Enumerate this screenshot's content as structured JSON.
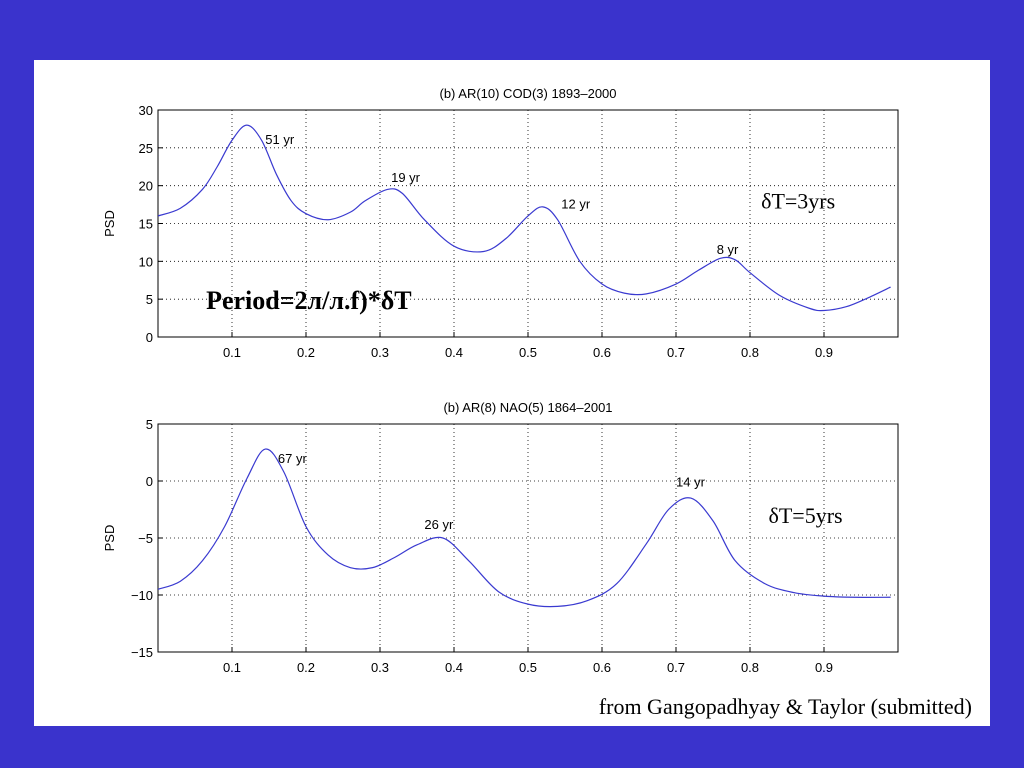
{
  "slide": {
    "credit": "from Gangopadhyay & Taylor (submitted)",
    "background_color": "#3a33cc",
    "line_color": "#3a3ad0"
  },
  "chart_data": [
    {
      "type": "line",
      "title": "(b)          AR(10) COD(3) 1893–2000",
      "xlabel": "",
      "ylabel": "PSD",
      "xlim": [
        0,
        1
      ],
      "ylim": [
        0,
        30
      ],
      "xticks": [
        0.1,
        0.2,
        0.3,
        0.4,
        0.5,
        0.6,
        0.7,
        0.8,
        0.9
      ],
      "xtick_labels": [
        "0.1",
        "0.2",
        "0.3",
        "0.4",
        "0.5",
        "0.6",
        "0.7",
        "0.8",
        "0.9"
      ],
      "yticks": [
        0,
        5,
        10,
        15,
        20,
        25,
        30
      ],
      "ytick_labels": [
        "0",
        "5",
        "10",
        "15",
        "20",
        "25",
        "30"
      ],
      "grid": true,
      "x": [
        0.0,
        0.03,
        0.06,
        0.08,
        0.1,
        0.12,
        0.14,
        0.16,
        0.18,
        0.2,
        0.23,
        0.26,
        0.28,
        0.31,
        0.33,
        0.36,
        0.4,
        0.44,
        0.47,
        0.5,
        0.52,
        0.54,
        0.57,
        0.6,
        0.63,
        0.66,
        0.7,
        0.73,
        0.76,
        0.78,
        0.8,
        0.84,
        0.88,
        0.9,
        0.93,
        0.96,
        0.99
      ],
      "y": [
        16.0,
        17.0,
        19.5,
        22.5,
        26.0,
        28.0,
        26.0,
        21.5,
        18.0,
        16.3,
        15.5,
        16.5,
        18.0,
        19.5,
        19.0,
        15.5,
        12.0,
        11.3,
        13.0,
        16.0,
        17.2,
        15.5,
        10.0,
        7.0,
        5.8,
        5.7,
        7.0,
        8.8,
        10.4,
        10.2,
        8.5,
        5.5,
        3.8,
        3.5,
        4.0,
        5.2,
        6.6
      ],
      "annotations": [
        {
          "text": "51 yr",
          "x": 0.145,
          "y": 25.5
        },
        {
          "text": "19 yr",
          "x": 0.315,
          "y": 20.5
        },
        {
          "text": "12 yr",
          "x": 0.545,
          "y": 17.0
        },
        {
          "text": "8 yr",
          "x": 0.755,
          "y": 11.0
        }
      ],
      "text_labels": [
        {
          "text": "δT=3yrs",
          "x": 0.815,
          "y": 17.0,
          "style": "large"
        },
        {
          "text": "Period=2л/л.f)*δT",
          "x": 0.065,
          "y": 3.7,
          "style": "bold"
        }
      ]
    },
    {
      "type": "line",
      "title": "(b)          AR(8) NAO(5) 1864–2001",
      "xlabel": "",
      "ylabel": "PSD",
      "xlim": [
        0,
        1
      ],
      "ylim": [
        -15,
        5
      ],
      "xticks": [
        0.1,
        0.2,
        0.3,
        0.4,
        0.5,
        0.6,
        0.7,
        0.8,
        0.9
      ],
      "xtick_labels": [
        "0.1",
        "0.2",
        "0.3",
        "0.4",
        "0.5",
        "0.6",
        "0.7",
        "0.8",
        "0.9"
      ],
      "yticks": [
        -15,
        -10,
        -5,
        0,
        5
      ],
      "ytick_labels": [
        "−15",
        "−10",
        "−5",
        "0",
        "5"
      ],
      "grid": true,
      "x": [
        0.0,
        0.03,
        0.06,
        0.09,
        0.12,
        0.145,
        0.17,
        0.2,
        0.23,
        0.26,
        0.29,
        0.32,
        0.35,
        0.385,
        0.42,
        0.46,
        0.5,
        0.54,
        0.58,
        0.62,
        0.66,
        0.69,
        0.72,
        0.75,
        0.78,
        0.82,
        0.86,
        0.9,
        0.94,
        0.99
      ],
      "y": [
        -9.5,
        -8.8,
        -7.0,
        -4.0,
        0.2,
        2.8,
        0.8,
        -4.0,
        -6.5,
        -7.6,
        -7.6,
        -6.7,
        -5.6,
        -5.0,
        -7.0,
        -9.7,
        -10.8,
        -11.0,
        -10.5,
        -9.0,
        -5.5,
        -2.5,
        -1.5,
        -3.5,
        -7.0,
        -9.0,
        -9.8,
        -10.1,
        -10.2,
        -10.2
      ],
      "annotations": [
        {
          "text": "67 yr",
          "x": 0.162,
          "y": 1.6
        },
        {
          "text": "26 yr",
          "x": 0.36,
          "y": -4.2
        },
        {
          "text": "14 yr",
          "x": 0.7,
          "y": -0.5
        }
      ],
      "text_labels": [
        {
          "text": "δT=5yrs",
          "x": 0.825,
          "y": -3.7,
          "style": "large"
        }
      ]
    }
  ]
}
